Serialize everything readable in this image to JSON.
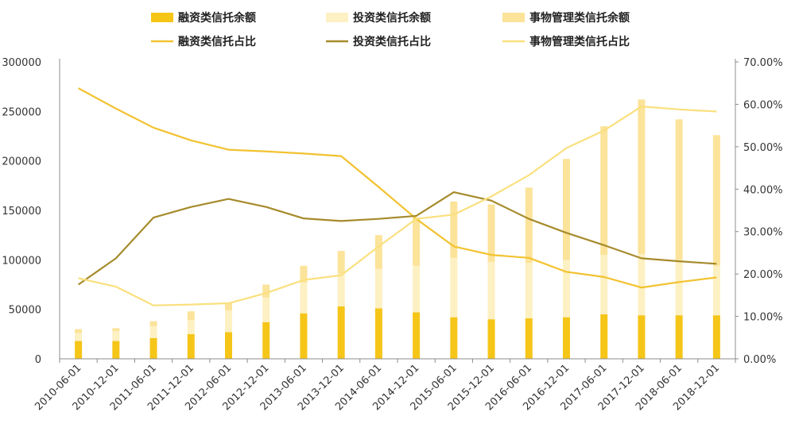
{
  "chart_data": {
    "type": "bar",
    "categories": [
      "2010-06-01",
      "2010-12-01",
      "2011-06-01",
      "2011-12-01",
      "2012-06-01",
      "2012-12-01",
      "2013-06-01",
      "2013-12-01",
      "2014-06-01",
      "2014-12-01",
      "2015-06-01",
      "2015-12-01",
      "2016-06-01",
      "2016-12-01",
      "2017-06-01",
      "2017-12-01",
      "2018-06-01",
      "2018-12-01"
    ],
    "y_left": {
      "lim": [
        0,
        300000
      ],
      "ticks": [
        "0",
        "50000",
        "100000",
        "150000",
        "200000",
        "250000",
        "300000"
      ]
    },
    "y_right": {
      "lim": [
        0,
        0.7
      ],
      "ticks": [
        "0.00%",
        "10.00%",
        "20.00%",
        "30.00%",
        "40.00%",
        "50.00%",
        "60.00%",
        "70.00%"
      ]
    },
    "grid": false,
    "legend_position": "top",
    "bar_series": [
      {
        "name": "融资类信托余额",
        "color": "#F5C518",
        "values": [
          18000,
          18000,
          21000,
          25000,
          27000,
          37000,
          46000,
          53000,
          51000,
          47000,
          42000,
          40000,
          41000,
          42000,
          45000,
          44000,
          44000,
          44000
        ]
      },
      {
        "name": "投资类信托余额",
        "color": "#FDF0C2",
        "values": [
          8000,
          10000,
          12000,
          14000,
          22000,
          25000,
          31000,
          33000,
          40000,
          47000,
          60000,
          58000,
          56000,
          58000,
          60000,
          62000,
          56000,
          50000
        ]
      },
      {
        "name": "事物管理类信托余额",
        "color": "#FBE39A",
        "values": [
          4000,
          3000,
          5000,
          9000,
          7000,
          13000,
          17000,
          23000,
          34000,
          49000,
          57000,
          58000,
          76000,
          102000,
          130000,
          156000,
          142000,
          132000
        ]
      }
    ],
    "line_series": [
      {
        "name": "融资类信托占比",
        "color": "#F2C230",
        "values": [
          0.638,
          0.59,
          0.545,
          0.515,
          0.493,
          0.489,
          0.484,
          0.478,
          0.405,
          0.33,
          0.265,
          0.245,
          0.238,
          0.205,
          0.193,
          0.168,
          0.181,
          0.192
        ]
      },
      {
        "name": "投资类信托占比",
        "color": "#A68B2C",
        "values": [
          0.175,
          0.237,
          0.333,
          0.358,
          0.377,
          0.358,
          0.331,
          0.325,
          0.33,
          0.337,
          0.393,
          0.373,
          0.33,
          0.297,
          0.268,
          0.237,
          0.23,
          0.224
        ]
      },
      {
        "name": "事物管理类信托占比",
        "color": "#FAE07E",
        "values": [
          0.19,
          0.17,
          0.126,
          0.128,
          0.131,
          0.155,
          0.186,
          0.197,
          0.265,
          0.33,
          0.34,
          0.383,
          0.433,
          0.497,
          0.538,
          0.595,
          0.588,
          0.583
        ]
      }
    ]
  }
}
